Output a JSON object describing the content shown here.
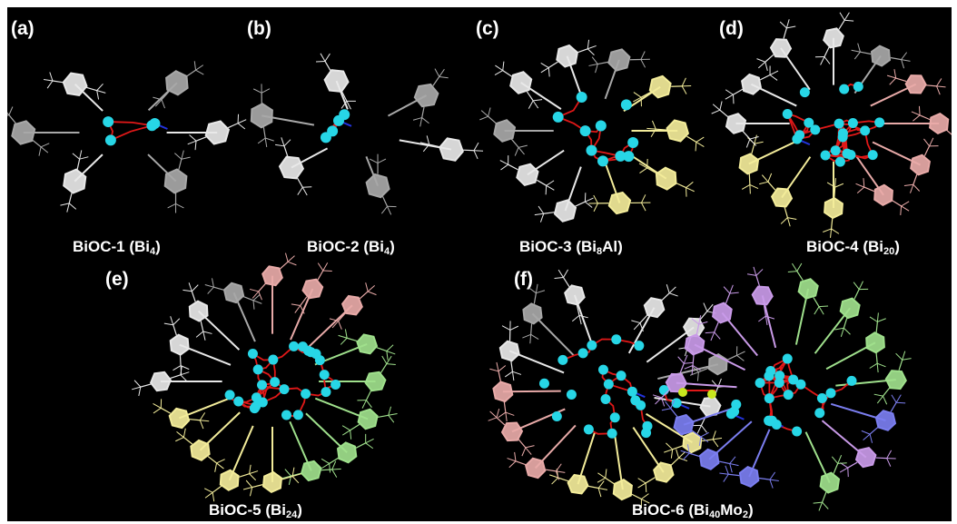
{
  "colors": {
    "background": "#000000",
    "bismuth_atom": "#27d6e6",
    "oxygen_bond": "#e01818",
    "nitrogen_bond": "#2233dd",
    "ligand_white": "#e8e8e8",
    "ligand_gray": "#a8a8a8",
    "ligand_yellow": "#f3ec9a",
    "ligand_pink": "#e8aaa8",
    "ligand_green": "#9fe08c",
    "ligand_blue": "#7b7ef0",
    "ligand_purple": "#c99ae8",
    "molybdenum_atom": "#c8e61e"
  },
  "panels": [
    {
      "letter": "(a)",
      "name": "BiOC-1",
      "formula_main": "Bi",
      "formula_sub": "4",
      "formula_rest": "",
      "formula_sub2": ""
    },
    {
      "letter": "(b)",
      "name": "BiOC-2",
      "formula_main": "Bi",
      "formula_sub": "4",
      "formula_rest": "",
      "formula_sub2": ""
    },
    {
      "letter": "(c)",
      "name": "BiOC-3",
      "formula_main": "Bi",
      "formula_sub": "8",
      "formula_rest": "Al",
      "formula_sub2": ""
    },
    {
      "letter": "(d)",
      "name": "BiOC-4",
      "formula_main": "Bi",
      "formula_sub": "20",
      "formula_rest": "",
      "formula_sub2": ""
    },
    {
      "letter": "(e)",
      "name": "BiOC-5",
      "formula_main": "Bi",
      "formula_sub": "24",
      "formula_rest": "",
      "formula_sub2": ""
    },
    {
      "letter": "(f)",
      "name": "BiOC-6",
      "formula_main": "Bi",
      "formula_sub": "40",
      "formula_rest": "Mo",
      "formula_sub2": "2"
    }
  ]
}
